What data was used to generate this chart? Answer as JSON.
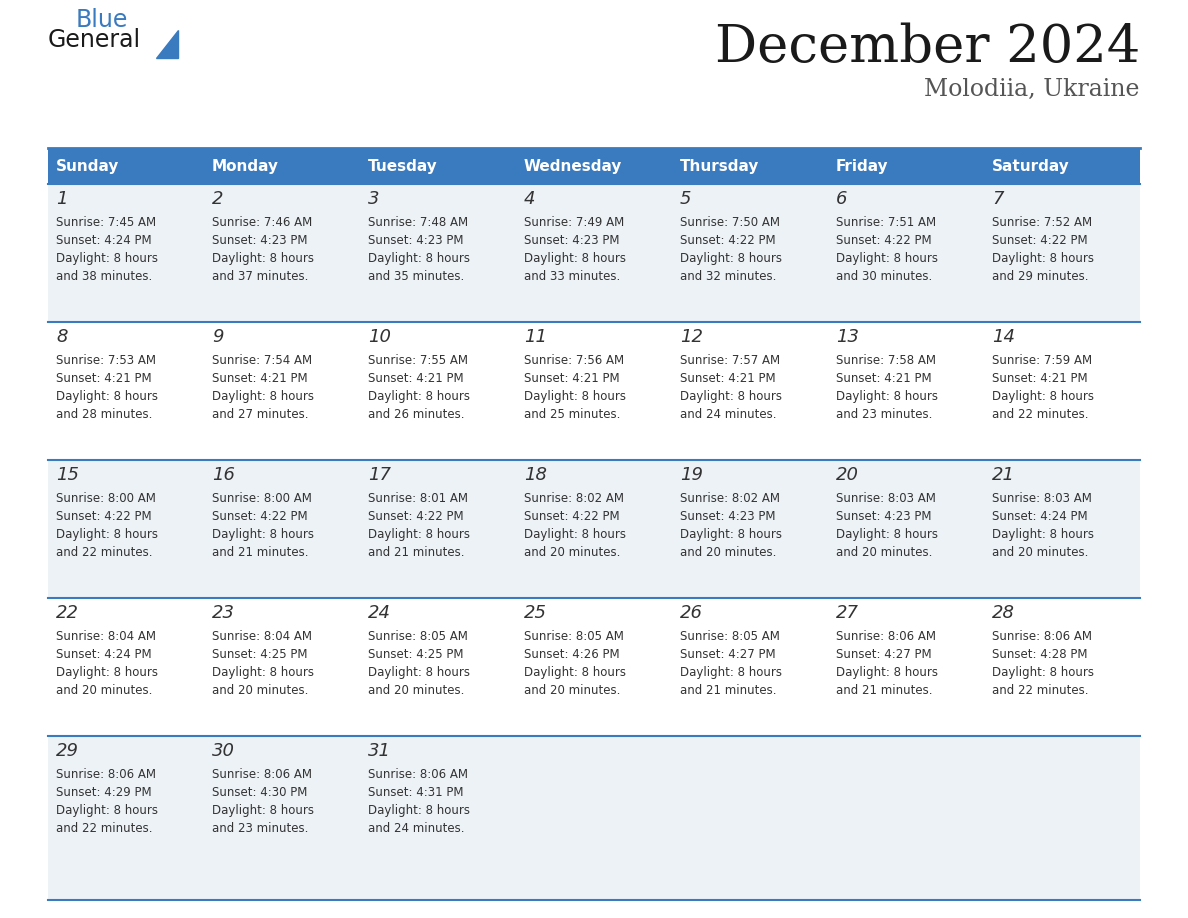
{
  "title": "December 2024",
  "subtitle": "Molodiia, Ukraine",
  "header_color": "#3a7abf",
  "header_text_color": "#ffffff",
  "row_bg_colors": [
    "#edf2f7",
    "#ffffff"
  ],
  "days_of_week": [
    "Sunday",
    "Monday",
    "Tuesday",
    "Wednesday",
    "Thursday",
    "Friday",
    "Saturday"
  ],
  "calendar": [
    [
      {
        "day": "1",
        "sunrise": "7:45 AM",
        "sunset": "4:24 PM",
        "daylight_hours": 8,
        "daylight_minutes": 38
      },
      {
        "day": "2",
        "sunrise": "7:46 AM",
        "sunset": "4:23 PM",
        "daylight_hours": 8,
        "daylight_minutes": 37
      },
      {
        "day": "3",
        "sunrise": "7:48 AM",
        "sunset": "4:23 PM",
        "daylight_hours": 8,
        "daylight_minutes": 35
      },
      {
        "day": "4",
        "sunrise": "7:49 AM",
        "sunset": "4:23 PM",
        "daylight_hours": 8,
        "daylight_minutes": 33
      },
      {
        "day": "5",
        "sunrise": "7:50 AM",
        "sunset": "4:22 PM",
        "daylight_hours": 8,
        "daylight_minutes": 32
      },
      {
        "day": "6",
        "sunrise": "7:51 AM",
        "sunset": "4:22 PM",
        "daylight_hours": 8,
        "daylight_minutes": 30
      },
      {
        "day": "7",
        "sunrise": "7:52 AM",
        "sunset": "4:22 PM",
        "daylight_hours": 8,
        "daylight_minutes": 29
      }
    ],
    [
      {
        "day": "8",
        "sunrise": "7:53 AM",
        "sunset": "4:21 PM",
        "daylight_hours": 8,
        "daylight_minutes": 28
      },
      {
        "day": "9",
        "sunrise": "7:54 AM",
        "sunset": "4:21 PM",
        "daylight_hours": 8,
        "daylight_minutes": 27
      },
      {
        "day": "10",
        "sunrise": "7:55 AM",
        "sunset": "4:21 PM",
        "daylight_hours": 8,
        "daylight_minutes": 26
      },
      {
        "day": "11",
        "sunrise": "7:56 AM",
        "sunset": "4:21 PM",
        "daylight_hours": 8,
        "daylight_minutes": 25
      },
      {
        "day": "12",
        "sunrise": "7:57 AM",
        "sunset": "4:21 PM",
        "daylight_hours": 8,
        "daylight_minutes": 24
      },
      {
        "day": "13",
        "sunrise": "7:58 AM",
        "sunset": "4:21 PM",
        "daylight_hours": 8,
        "daylight_minutes": 23
      },
      {
        "day": "14",
        "sunrise": "7:59 AM",
        "sunset": "4:21 PM",
        "daylight_hours": 8,
        "daylight_minutes": 22
      }
    ],
    [
      {
        "day": "15",
        "sunrise": "8:00 AM",
        "sunset": "4:22 PM",
        "daylight_hours": 8,
        "daylight_minutes": 22
      },
      {
        "day": "16",
        "sunrise": "8:00 AM",
        "sunset": "4:22 PM",
        "daylight_hours": 8,
        "daylight_minutes": 21
      },
      {
        "day": "17",
        "sunrise": "8:01 AM",
        "sunset": "4:22 PM",
        "daylight_hours": 8,
        "daylight_minutes": 21
      },
      {
        "day": "18",
        "sunrise": "8:02 AM",
        "sunset": "4:22 PM",
        "daylight_hours": 8,
        "daylight_minutes": 20
      },
      {
        "day": "19",
        "sunrise": "8:02 AM",
        "sunset": "4:23 PM",
        "daylight_hours": 8,
        "daylight_minutes": 20
      },
      {
        "day": "20",
        "sunrise": "8:03 AM",
        "sunset": "4:23 PM",
        "daylight_hours": 8,
        "daylight_minutes": 20
      },
      {
        "day": "21",
        "sunrise": "8:03 AM",
        "sunset": "4:24 PM",
        "daylight_hours": 8,
        "daylight_minutes": 20
      }
    ],
    [
      {
        "day": "22",
        "sunrise": "8:04 AM",
        "sunset": "4:24 PM",
        "daylight_hours": 8,
        "daylight_minutes": 20
      },
      {
        "day": "23",
        "sunrise": "8:04 AM",
        "sunset": "4:25 PM",
        "daylight_hours": 8,
        "daylight_minutes": 20
      },
      {
        "day": "24",
        "sunrise": "8:05 AM",
        "sunset": "4:25 PM",
        "daylight_hours": 8,
        "daylight_minutes": 20
      },
      {
        "day": "25",
        "sunrise": "8:05 AM",
        "sunset": "4:26 PM",
        "daylight_hours": 8,
        "daylight_minutes": 20
      },
      {
        "day": "26",
        "sunrise": "8:05 AM",
        "sunset": "4:27 PM",
        "daylight_hours": 8,
        "daylight_minutes": 21
      },
      {
        "day": "27",
        "sunrise": "8:06 AM",
        "sunset": "4:27 PM",
        "daylight_hours": 8,
        "daylight_minutes": 21
      },
      {
        "day": "28",
        "sunrise": "8:06 AM",
        "sunset": "4:28 PM",
        "daylight_hours": 8,
        "daylight_minutes": 22
      }
    ],
    [
      {
        "day": "29",
        "sunrise": "8:06 AM",
        "sunset": "4:29 PM",
        "daylight_hours": 8,
        "daylight_minutes": 22
      },
      {
        "day": "30",
        "sunrise": "8:06 AM",
        "sunset": "4:30 PM",
        "daylight_hours": 8,
        "daylight_minutes": 23
      },
      {
        "day": "31",
        "sunrise": "8:06 AM",
        "sunset": "4:31 PM",
        "daylight_hours": 8,
        "daylight_minutes": 24
      },
      null,
      null,
      null,
      null
    ]
  ],
  "logo_general_color": "#1a1a1a",
  "logo_blue_color": "#3a7abf",
  "text_color": "#333333",
  "separator_line_color": "#3a7abf",
  "title_fontsize": 38,
  "subtitle_fontsize": 17,
  "header_fontsize": 11,
  "day_number_fontsize": 13,
  "cell_text_fontsize": 8.5,
  "fig_width": 11.88,
  "fig_height": 9.18,
  "dpi": 100
}
